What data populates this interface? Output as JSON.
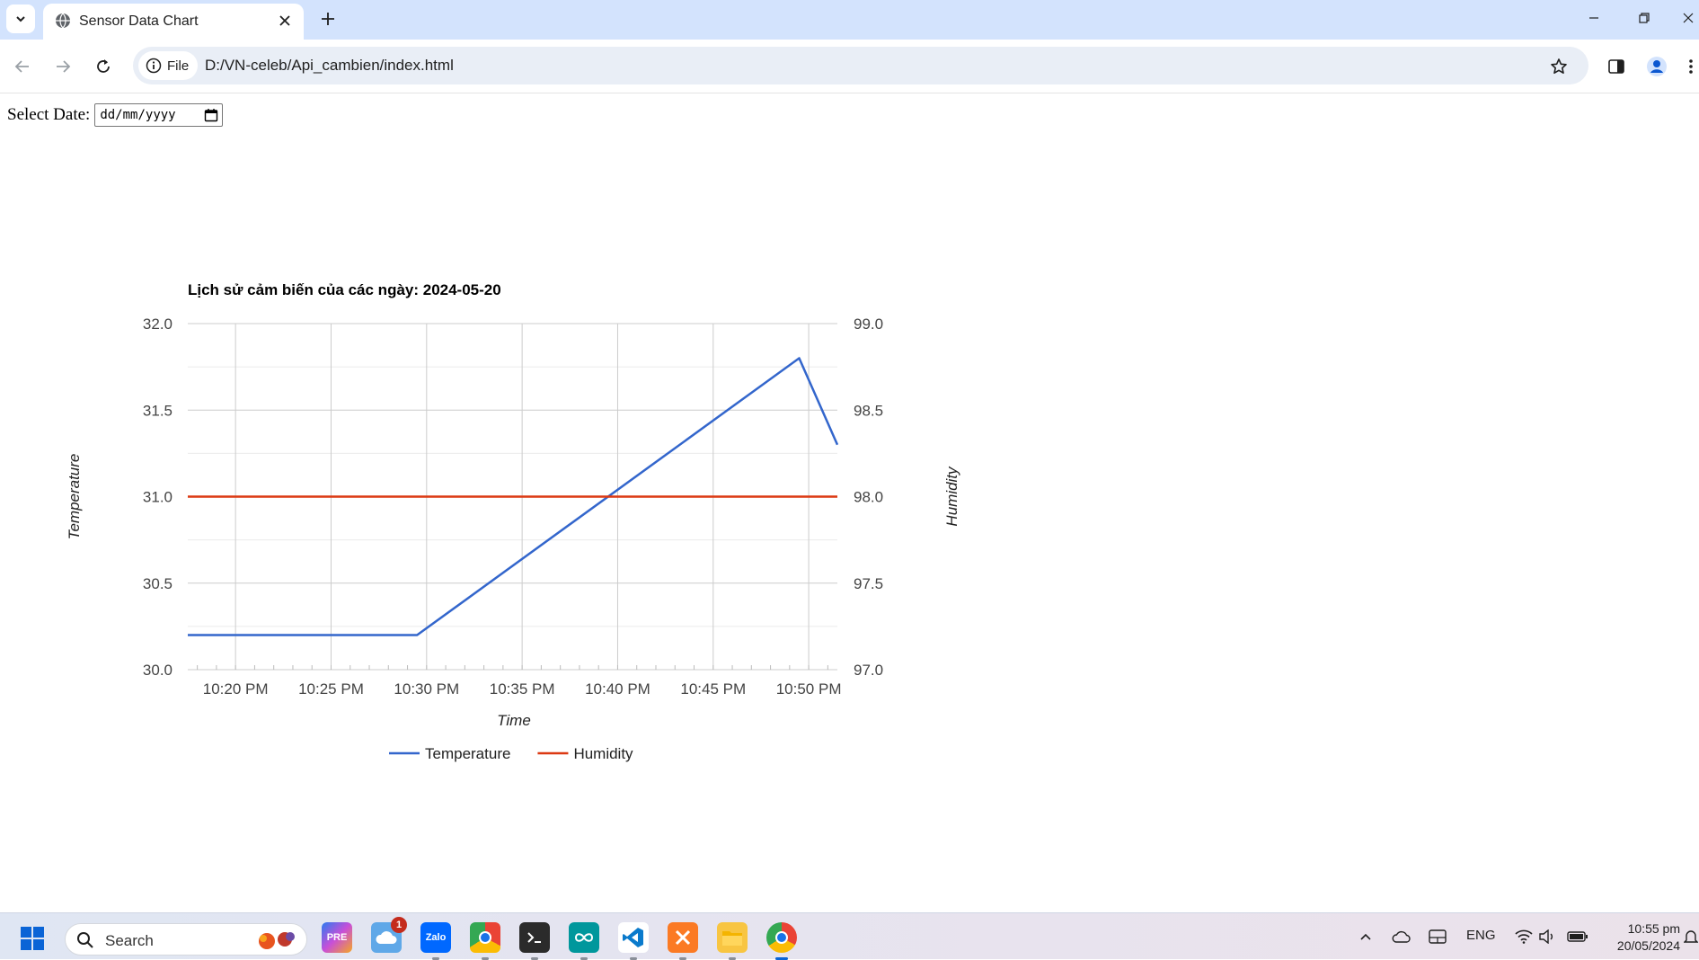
{
  "browser": {
    "tab_title": "Sensor Data Chart",
    "site_chip_label": "File",
    "url": "D:/VN-celeb/Api_cambien/index.html"
  },
  "page": {
    "date_label": "Select Date:",
    "date_placeholder": "dd/mm/yyyy"
  },
  "chart_data": {
    "type": "line",
    "title": "Lịch sử cảm biến của các ngày: 2024-05-20",
    "xlabel": "Time",
    "ylabel_left": "Temperature",
    "ylabel_right": "Humidity",
    "x_ticks": [
      "10:20 PM",
      "10:25 PM",
      "10:30 PM",
      "10:35 PM",
      "10:40 PM",
      "10:45 PM",
      "10:50 PM"
    ],
    "x_range_minutes": [
      "10:17.5 PM",
      "10:51.5 PM"
    ],
    "y_left_ticks": [
      "30.0",
      "30.5",
      "31.0",
      "31.5",
      "32.0"
    ],
    "y_left_range": [
      30.0,
      32.0
    ],
    "y_right_ticks": [
      "97.0",
      "97.5",
      "98.0",
      "98.5",
      "99.0"
    ],
    "y_right_range": [
      97.0,
      99.0
    ],
    "grid": true,
    "legend_position": "bottom",
    "series": [
      {
        "name": "Temperature",
        "axis": "left",
        "color": "#3366cc",
        "points": [
          {
            "x": "10:17.5 PM",
            "y": 30.2
          },
          {
            "x": "10:29.5 PM",
            "y": 30.2
          },
          {
            "x": "10:49.5 PM",
            "y": 31.8
          },
          {
            "x": "10:51.5 PM",
            "y": 31.3
          }
        ]
      },
      {
        "name": "Humidity",
        "axis": "right",
        "color": "#dc3912",
        "points": [
          {
            "x": "10:17.5 PM",
            "y": 98.0
          },
          {
            "x": "10:51.5 PM",
            "y": 98.0
          }
        ]
      }
    ]
  },
  "taskbar": {
    "search_label": "Search",
    "notification_count": "1",
    "lang": "ENG",
    "time": "10:55 pm",
    "date": "20/05/2024",
    "apps": [
      "copilot-icon",
      "weather-icon",
      "zalo-icon",
      "chrome-beta-icon",
      "terminal-icon",
      "arduino-icon",
      "vscode-icon",
      "xampp-icon",
      "file-explorer-icon",
      "chrome-icon"
    ]
  }
}
